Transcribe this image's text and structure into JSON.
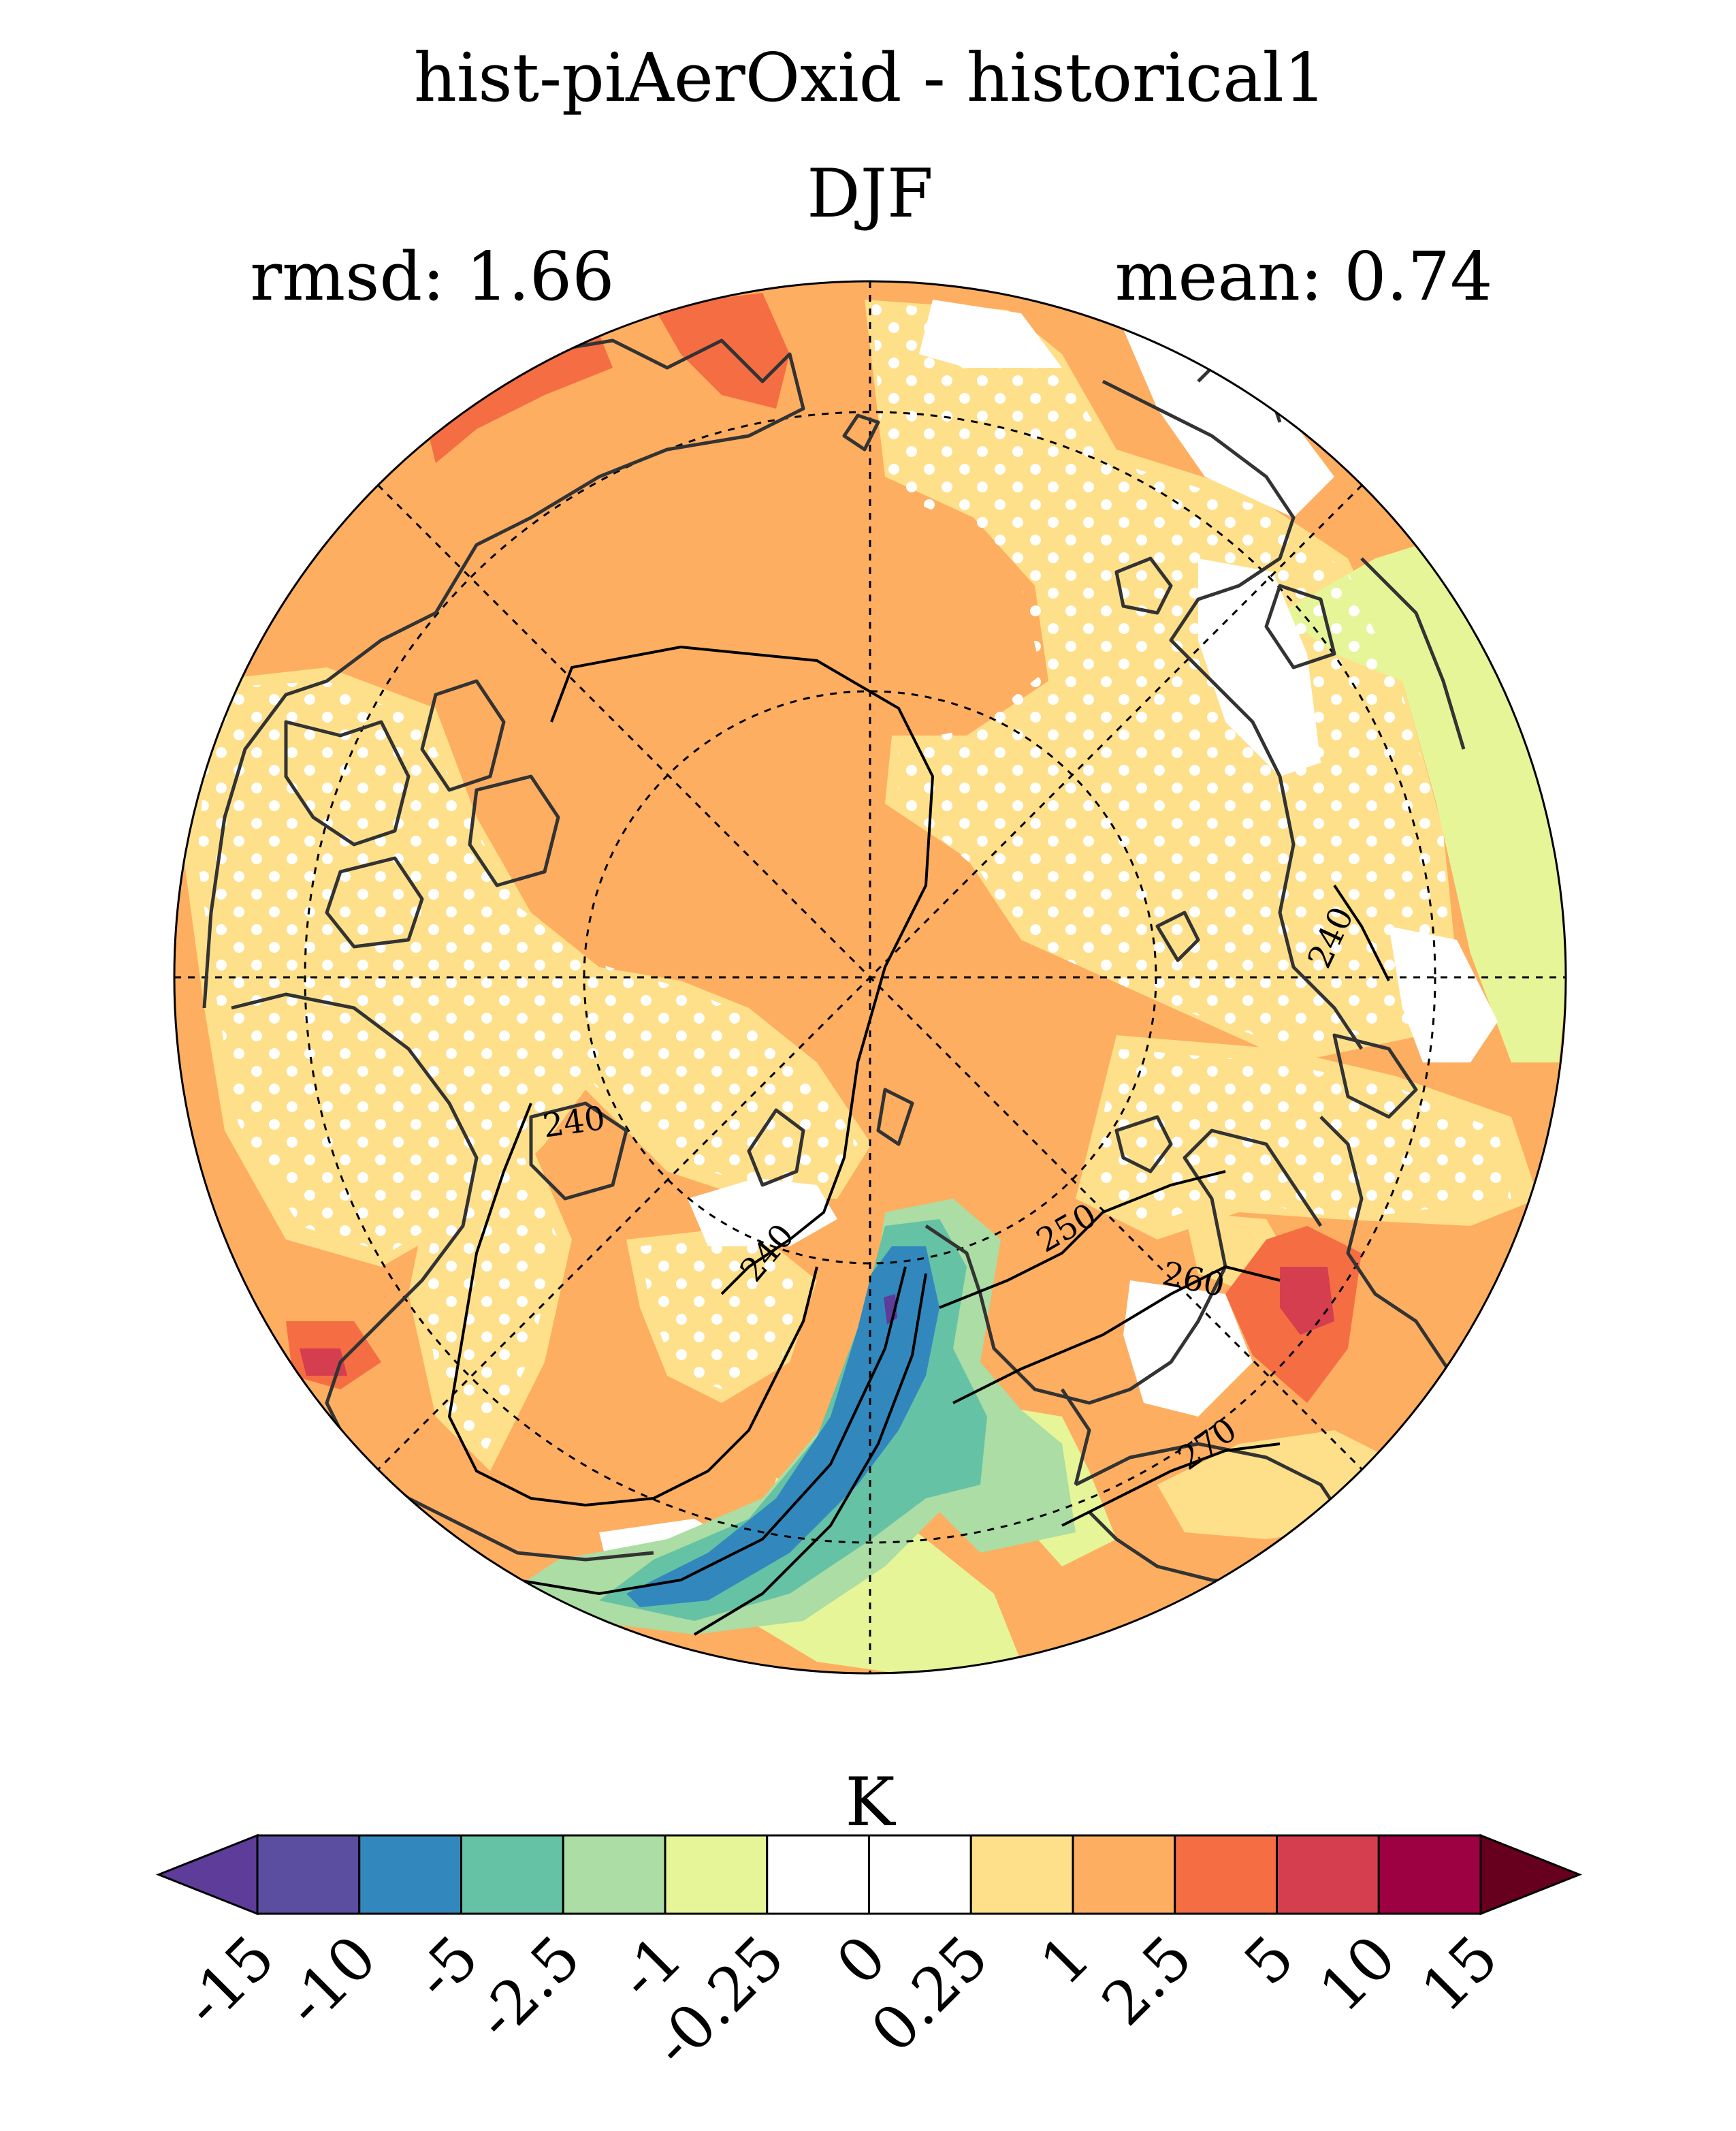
{
  "header": {
    "title": "hist-piAerOxid - historical1",
    "season": "DJF",
    "rmsd_label": "rmsd: 1.66",
    "mean_label": "mean: 0.74"
  },
  "map": {
    "projection": "north-polar-stereographic",
    "contour_labels": [
      "240",
      "240",
      "240",
      "240",
      "250",
      "260",
      "270"
    ],
    "stippling": "significance-dots"
  },
  "colorbar": {
    "unit": "K",
    "levels": [
      "-15",
      "-10",
      "-5",
      "-2.5",
      "-1",
      "-0.25",
      "0",
      "0.25",
      "1",
      "2.5",
      "5",
      "10",
      "15"
    ],
    "colors": [
      "#5e3c99",
      "#5b4ea0",
      "#3288bd",
      "#66c2a5",
      "#abdda4",
      "#e6f598",
      "#ffffff",
      "#ffffff",
      "#fee08b",
      "#fdae61",
      "#f46d43",
      "#d53e4f",
      "#9e0142",
      "#67001f"
    ]
  }
}
